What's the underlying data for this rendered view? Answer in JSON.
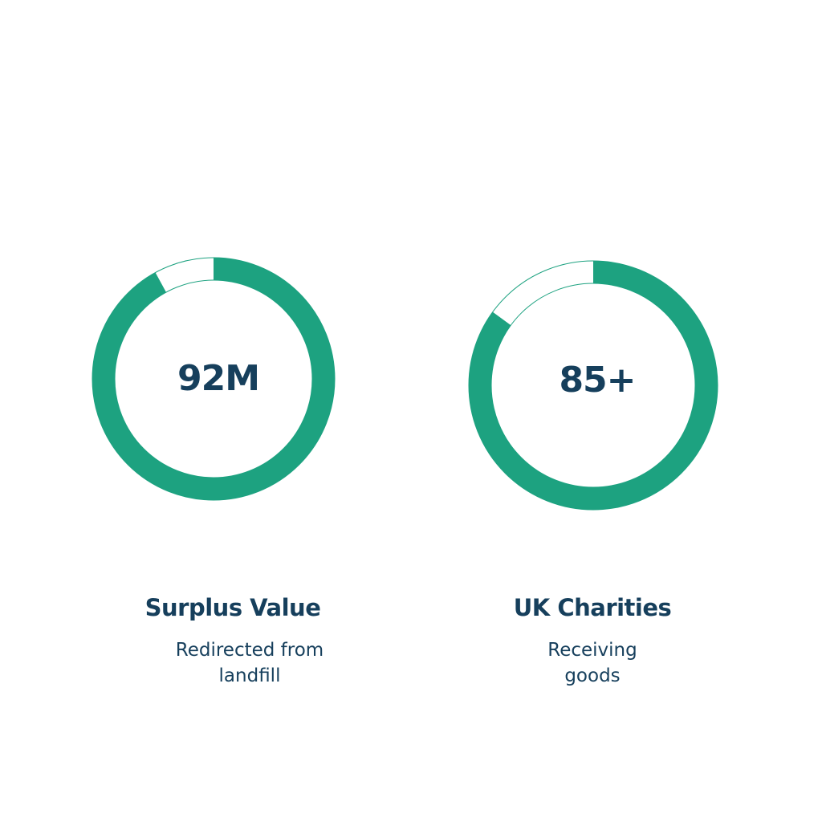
{
  "colors": {
    "ring": "#1da280",
    "text": "#163f5c",
    "background": "#ffffff"
  },
  "stats": [
    {
      "value": "92M",
      "title": "Surplus Value",
      "subtitle_lines": [
        "Redirected from",
        "landfill"
      ],
      "ring_fill_fraction": 0.92
    },
    {
      "value": "85+",
      "title": "UK Charities",
      "subtitle_lines": [
        "Receiving",
        "goods"
      ],
      "ring_fill_fraction": 0.85
    }
  ]
}
